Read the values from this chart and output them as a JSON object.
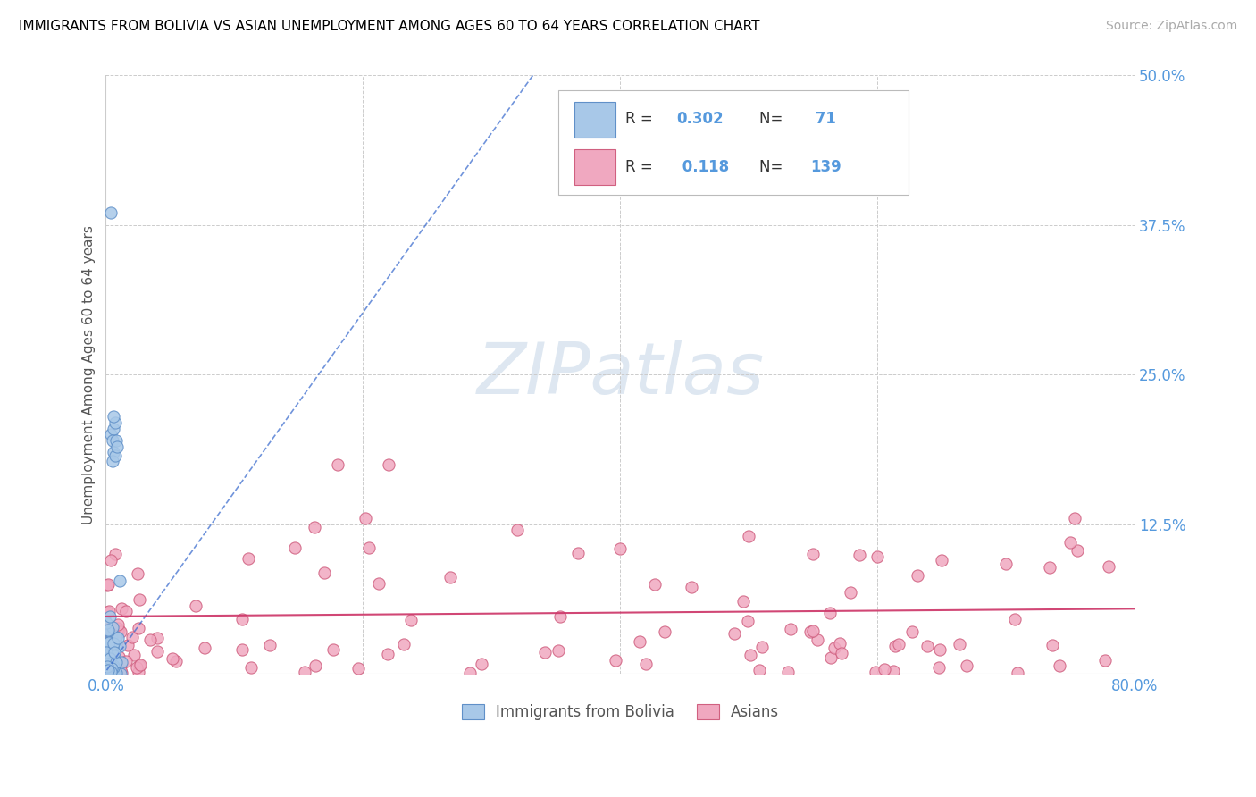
{
  "title": "IMMIGRANTS FROM BOLIVIA VS ASIAN UNEMPLOYMENT AMONG AGES 60 TO 64 YEARS CORRELATION CHART",
  "source": "Source: ZipAtlas.com",
  "ylabel": "Unemployment Among Ages 60 to 64 years",
  "xlim": [
    0.0,
    0.8
  ],
  "ylim": [
    0.0,
    0.5
  ],
  "blue_R": 0.302,
  "blue_N": 71,
  "pink_R": 0.118,
  "pink_N": 139,
  "blue_color": "#a8c8e8",
  "blue_edge": "#6090c8",
  "pink_color": "#f0a8c0",
  "pink_edge": "#d06080",
  "blue_line_color": "#3366cc",
  "pink_line_color": "#cc3366",
  "watermark_color": "#c8d8e8"
}
